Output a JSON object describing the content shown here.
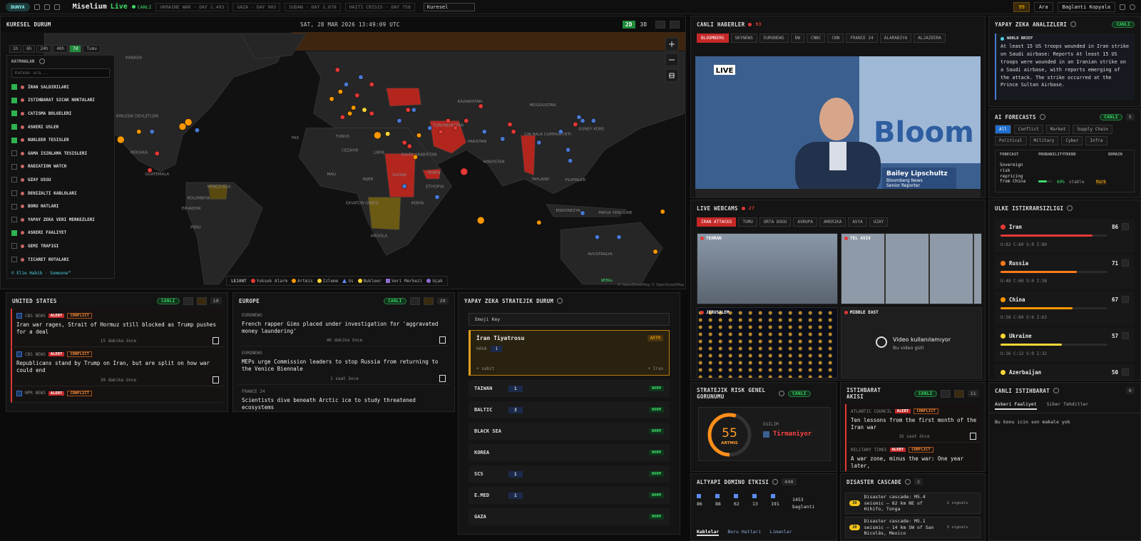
{
  "topbar": {
    "badge": "DUNYA",
    "brand": "Miselium",
    "brand_accent": "Live",
    "status": "CANLI",
    "ticker": [
      "UKRAINE WAR · DAY 1.493",
      "GAZA · DAY 903",
      "SUDAN · DAY 1.078",
      "HAITI CRISIS · DAY 758"
    ],
    "region": "Kuresel",
    "alerts": 99,
    "search": "Ara",
    "copy_link": "Baglanti Kopyala"
  },
  "map": {
    "title": "KURESEL DURUM",
    "datetime": "SAT, 28 MAR 2026 13:49:09 UTC",
    "view_modes": [
      {
        "label": "2D",
        "active": true
      },
      {
        "label": "3D"
      }
    ],
    "time_ranges": [
      {
        "label": "1h"
      },
      {
        "label": "6h"
      },
      {
        "label": "24h"
      },
      {
        "label": "48h"
      },
      {
        "label": "7d",
        "active": true
      },
      {
        "label": "Tumu"
      }
    ],
    "layers_title": "KATMANLAR",
    "layer_search": "Katman ara...",
    "layers": [
      {
        "name": "İRAN SALDIRILARI",
        "checked": true
      },
      {
        "name": "ISTIHBARAT SICAK NOKTALARI",
        "checked": true
      },
      {
        "name": "CATISMA BOLGELERI",
        "checked": true
      },
      {
        "name": "ASKERI USLER",
        "checked": true
      },
      {
        "name": "NUKLEER TESISLER",
        "checked": true
      },
      {
        "name": "GAMA ISINLAMA TESISLERI",
        "checked": false
      },
      {
        "name": "RADIATION WATCH",
        "checked": false
      },
      {
        "name": "UZAY USSU",
        "checked": false
      },
      {
        "name": "DENIZALTI KABLOLARI",
        "checked": false
      },
      {
        "name": "BORU HATLARI",
        "checked": false
      },
      {
        "name": "YAPAY ZEKA VERI MERKEZLERI",
        "checked": false
      },
      {
        "name": "ASKERI FAALIYET",
        "checked": true
      },
      {
        "name": "GEMI TRAFIGI",
        "checked": false
      },
      {
        "name": "TICARET ROTALARI",
        "checked": false
      }
    ],
    "credit": "© Elie Habib · Someone™",
    "legend_title": "LEJANT",
    "legend": [
      {
        "name": "Yuksek Alarm",
        "color": "#e53935",
        "shape": "circle"
      },
      {
        "name": "Artmis",
        "color": "#ff9800",
        "shape": "circle"
      },
      {
        "name": "Izleme",
        "color": "#fdd835",
        "shape": "circle"
      },
      {
        "name": "Us",
        "color": "#5b8def",
        "shape": "triangle"
      },
      {
        "name": "Nukleer",
        "color": "#fdd835",
        "shape": "circle"
      },
      {
        "name": "Veri Merkezi",
        "color": "#8e6bd0",
        "shape": "square"
      },
      {
        "name": "Uçak",
        "color": "#8e6bd0",
        "shape": "circle"
      }
    ],
    "webgl": "WEBGL",
    "attribution": "© OpenStreetMap © OpenStreetMap",
    "labels": [
      "KANADA",
      "AMERIKA BIRLESIK DEVLETLERI",
      "MEKSIKA",
      "GUATEMALA",
      "KOLOMBIYA",
      "VENEZUELA",
      "EKVADOR",
      "PERU",
      "FAS",
      "TUNUS",
      "CEZAYIR",
      "LIBYA",
      "MALI",
      "NIJER",
      "SUDAN",
      "ETIYOPYA",
      "KENYA",
      "EKVATOR GINESI",
      "ANGOLA",
      "KAZAKISTAN",
      "MOGOLISTAN",
      "CIN HALK CUMHURIYETI",
      "TURKMENISTAN",
      "PAKISTAN",
      "HINDISTAN",
      "SUUDI ARABISTAN",
      "YEMEN",
      "TAYLAND",
      "FILIPINLER",
      "GUNEY KORE",
      "ENDONEZYA",
      "PAPUA YENI GINE",
      "AVUSTRALYA"
    ]
  },
  "us_news": {
    "title": "UNITED STATES",
    "status": "CANLI",
    "count": 10,
    "items": [
      {
        "source": "CBS NEWS",
        "tags": [
          "ALERT",
          "CONFLICT"
        ],
        "headline": "Iran war rages, Strait of Hormuz still blocked as Trump pushes for a deal",
        "time": "15 dakika önce"
      },
      {
        "source": "CBS NEWS",
        "tags": [
          "ALERT",
          "CONFLICT"
        ],
        "headline": "Republicans stand by Trump on Iran, but are split on how war could end",
        "time": "39 dakika önce"
      },
      {
        "source": "NPR NEWS",
        "tags": [
          "ALERT",
          "CONFLICT"
        ]
      }
    ]
  },
  "eu_news": {
    "title": "EUROPE",
    "status": "CANLI",
    "count": 20,
    "items": [
      {
        "source": "EURONEWS",
        "headline": "French rapper Gims placed under investigation for 'aggravated money laundering'",
        "time": "46 dakika önce"
      },
      {
        "source": "EURONEWS",
        "headline": "MEPs urge Commission leaders to stop Russia from returning to the Venice Biennale",
        "time": "1 saat önce"
      },
      {
        "source": "FRANCE 24",
        "headline": "Scientists dive beneath Arctic ice to study threatened ecosystems"
      }
    ]
  },
  "ai_strategic": {
    "title": "YAPAY ZEKA STRATEJIK DURUM",
    "emoji_key": "Emoji Key",
    "featured": {
      "name": "İran Tiyatrosu",
      "status": "ARTM",
      "sub": "HAVA",
      "count": 1,
      "footer_left": "+ sabit",
      "footer_right": "+ Iran"
    },
    "rows": [
      {
        "name": "TAIWAN",
        "count": 1,
        "status": "NORM"
      },
      {
        "name": "BALTIC",
        "count": 3,
        "status": "NORM"
      },
      {
        "name": "BLACK SEA",
        "status": "NORM"
      },
      {
        "name": "KOREA",
        "status": "NORM"
      },
      {
        "name": "SCS",
        "count": 1,
        "status": "NORM"
      },
      {
        "name": "E.MED",
        "count": 1,
        "status": "NORM"
      },
      {
        "name": "GAZA",
        "status": "NORM"
      }
    ]
  },
  "live_news": {
    "title": "CANLI HABERLER",
    "count": 93,
    "channels": [
      {
        "label": "BLOOMBERG",
        "active": true
      },
      {
        "label": "SKYNEWS"
      },
      {
        "label": "EURONEWS"
      },
      {
        "label": "DW"
      },
      {
        "label": "CNBC"
      },
      {
        "label": "CNN"
      },
      {
        "label": "FRANCE 24"
      },
      {
        "label": "ALARABIYA"
      },
      {
        "label": "ALJAZEERA"
      }
    ],
    "live": "LIVE",
    "watermark": "Bloom",
    "reporter": "Bailey Lipschultz",
    "outlet": "Bloomberg News",
    "role": "Senior Reporter"
  },
  "webcams": {
    "title": "LIVE WEBCAMS",
    "count": 27,
    "tabs": [
      {
        "label": "IRAN ATTACKS",
        "active": true
      },
      {
        "label": "TUMU"
      },
      {
        "label": "ORTA DOGU"
      },
      {
        "label": "AVRUPA"
      },
      {
        "label": "AMERIKA"
      },
      {
        "label": "ASYA"
      },
      {
        "label": "UZAY"
      }
    ],
    "cams": [
      {
        "name": "TEHRAN"
      },
      {
        "name": "TEL AVIV"
      },
      {
        "name": "JERUSALEM"
      },
      {
        "name": "MIDDLE EAST",
        "unavailable": "Video kullanılamıyor",
        "unavailable_sub": "Bu video gizli"
      }
    ]
  },
  "risk": {
    "title": "STRATEJIK RISK GENEL GORUNUMU",
    "status": "CANLI",
    "score": 55,
    "range": [
      0,
      100
    ],
    "score_label": "ARTMIS",
    "trend_title": "EGILIM",
    "trend": "Tirmaniyor"
  },
  "intel_feed": {
    "title": "ISTIHBARAT AKISI",
    "status": "CANLI",
    "count": 11,
    "items": [
      {
        "source": "ATLANTIC COUNCIL",
        "tags": [
          "ALERT",
          "CONFLICT"
        ],
        "headline": "Ten lessons from the first month of the Iran war",
        "time": "16 saat önce"
      },
      {
        "source": "MILITARY TIMES",
        "tags": [
          "ALERT",
          "CONFLICT"
        ],
        "headline": "A war zone, minus the war: One year later,"
      }
    ]
  },
  "domino": {
    "title": "ALTYAPI DOMINO ETKISI",
    "count": 440,
    "stats": [
      86,
      88,
      62,
      13,
      191
    ],
    "total": 1453,
    "total_label": "baglanti",
    "tabs": [
      {
        "label": "Kablolar",
        "active": true
      },
      {
        "label": "Boru Hatlari"
      },
      {
        "label": "Limanlar"
      }
    ]
  },
  "disaster": {
    "title": "DISASTER CASCADE",
    "count": 2,
    "items": [
      {
        "badge": "30",
        "title": "Disaster cascade: M5.4 seismic — 82 km NE of Hihifo, Tonga",
        "signals": "2 signals"
      },
      {
        "badge": "30",
        "title": "Disaster cascade: M5.1 seismic — 14 km SW of San Nicolás, Mexico",
        "signals": "3 signals"
      }
    ]
  },
  "ai_analysis": {
    "title": "YAPAY ZEKA ANALIZLERI",
    "status": "CANLI",
    "brief_label": "WORLD BRIEF",
    "brief": "At least 15 US troops wounded in Iran strike on Saudi airbase: Reports At least 15 US troops were wounded in an Iranian strike on a Saudi airbase, with reports emerging of the attack. The strike occurred at the Prince Sultan Airbase."
  },
  "forecasts": {
    "title": "AI FORECASTS",
    "status": "CANLI",
    "count": 5,
    "tabs": [
      {
        "label": "All",
        "active": true
      },
      {
        "label": "Conflict"
      },
      {
        "label": "Market"
      },
      {
        "label": "Supply Chain"
      },
      {
        "label": "Political"
      },
      {
        "label": "Military"
      },
      {
        "label": "Cyber"
      },
      {
        "label": "Infra"
      }
    ],
    "columns": [
      "FORECAST",
      "PROBABILITY",
      "TREND",
      "DOMAIN"
    ],
    "rows": [
      {
        "name": "Sovereign risk repricing from China",
        "probability": 60,
        "probability_label": "60%",
        "trend": "stable",
        "domain": "Market"
      }
    ]
  },
  "instability": {
    "title": "ULKE ISTIKRARSIZLIGI",
    "range": [
      0,
      100
    ],
    "countries": [
      {
        "name": "Iran",
        "score": 86,
        "color": "#e53935",
        "components": "U:82 C:60 S:0 I:80"
      },
      {
        "name": "Russia",
        "score": 71,
        "color": "#ff7a1a",
        "components": "U:48 C:60 S:0 I:38"
      },
      {
        "name": "China",
        "score": 67,
        "color": "#ff9800",
        "components": "U:58 C:60 S:6 I:63"
      },
      {
        "name": "Ukraine",
        "score": 57,
        "color": "#fdd835",
        "components": "U:26 C:12 S:0 I:32"
      },
      {
        "name": "Azerbaijan",
        "score": 50,
        "color": "#fdd835"
      }
    ]
  },
  "live_intel": {
    "title": "CANLI ISTIHBARAT",
    "count": 0,
    "tabs": [
      {
        "label": "Askeri Faaliyet",
        "active": true
      },
      {
        "label": "Siber Tehditler"
      }
    ],
    "empty": "Bu konu icin son makale yok"
  }
}
